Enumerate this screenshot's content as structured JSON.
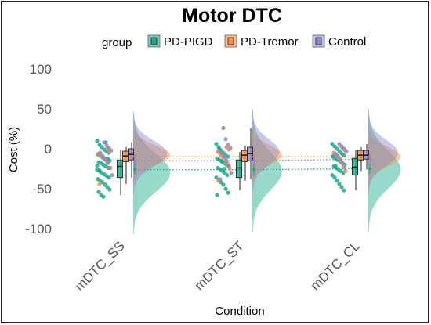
{
  "chart_data": {
    "type": "raincloud",
    "title": "Motor DTC",
    "xlabel": "Condition",
    "ylabel": "Cost (%)",
    "ylim": [
      -110,
      110
    ],
    "yticks": [
      100,
      50,
      0,
      -50,
      -100
    ],
    "categories": [
      "mDTC_SS",
      "mDTC_ST",
      "mDTC_CL"
    ],
    "legend_title": "group",
    "legend_position": "top",
    "series": [
      {
        "name": "PD-PIGD",
        "color": "#1bab8a",
        "means": [
          -26,
          -26,
          -25
        ],
        "boxes": [
          {
            "min": -58,
            "q1": -36,
            "median": -22,
            "q3": -14,
            "max": -2
          },
          {
            "min": -52,
            "q1": -36,
            "median": -24,
            "q3": -14,
            "max": -4
          },
          {
            "min": -52,
            "q1": -33,
            "median": -23,
            "q3": -12,
            "max": -2
          }
        ],
        "density_peaks": [
          -30,
          -28,
          -26
        ],
        "points": [
          [
            10,
            5,
            2,
            -1,
            -3,
            -5,
            -7,
            -9,
            -11,
            -12,
            -14,
            -15,
            -17,
            -18,
            -20,
            -22,
            -24,
            -26,
            -28,
            -30,
            -32,
            -34,
            -36,
            -38,
            -40,
            -42,
            -45,
            -48,
            -51,
            -54,
            -58,
            -60,
            8,
            -13,
            -21,
            -27
          ],
          [
            6,
            2,
            -2,
            -5,
            -8,
            -10,
            -12,
            -14,
            -16,
            -18,
            -20,
            -22,
            -24,
            -26,
            -28,
            -30,
            -33,
            -36,
            -39,
            -42,
            -45,
            -50,
            -55,
            -58,
            0,
            -15,
            -25
          ],
          [
            6,
            3,
            0,
            -3,
            -6,
            -8,
            -10,
            -12,
            -14,
            -16,
            -18,
            -20,
            -22,
            -24,
            -26,
            -28,
            -30,
            -33,
            -36,
            -40,
            -44,
            -48,
            -52,
            -9,
            -21
          ]
        ]
      },
      {
        "name": "PD-Tremor",
        "color": "#fb8d3c",
        "means": [
          -10,
          -10,
          -10
        ],
        "boxes": [
          {
            "min": -44,
            "q1": -16,
            "median": -9,
            "q3": -3,
            "max": 2
          },
          {
            "min": -40,
            "q1": -16,
            "median": -8,
            "q3": -2,
            "max": 4
          },
          {
            "min": -28,
            "q1": -14,
            "median": -8,
            "q3": -2,
            "max": 2
          }
        ],
        "density_peaks": [
          -8,
          -8,
          -10
        ],
        "points": [
          [
            0,
            -3,
            -6,
            -8,
            -11,
            -14,
            -18,
            -24,
            -44
          ],
          [
            2,
            -1,
            -4,
            -7,
            -10,
            -13,
            -18,
            -25,
            -40
          ],
          [
            1,
            -2,
            -5,
            -8,
            -11,
            -15,
            -22,
            -28
          ]
        ]
      },
      {
        "name": "Control",
        "color": "#8d88c8",
        "means": [
          -15,
          -15,
          -13
        ],
        "boxes": [
          {
            "min": -36,
            "q1": -14,
            "median": -7,
            "q3": 0,
            "max": 8
          },
          {
            "min": -38,
            "q1": -15,
            "median": -6,
            "q3": 2,
            "max": 26
          },
          {
            "min": -26,
            "q1": -13,
            "median": -8,
            "q3": -2,
            "max": 6
          }
        ],
        "density_peaks": [
          -6,
          -4,
          -5
        ],
        "points": [
          [
            8,
            4,
            1,
            -2,
            -5,
            -9,
            -13,
            -17,
            -24,
            -33
          ],
          [
            26,
            12,
            5,
            1,
            -3,
            -6,
            -10,
            -15,
            -22,
            -30,
            -38
          ],
          [
            6,
            3,
            0,
            -3,
            -6,
            -9,
            -13,
            -18,
            -24
          ]
        ]
      }
    ]
  }
}
